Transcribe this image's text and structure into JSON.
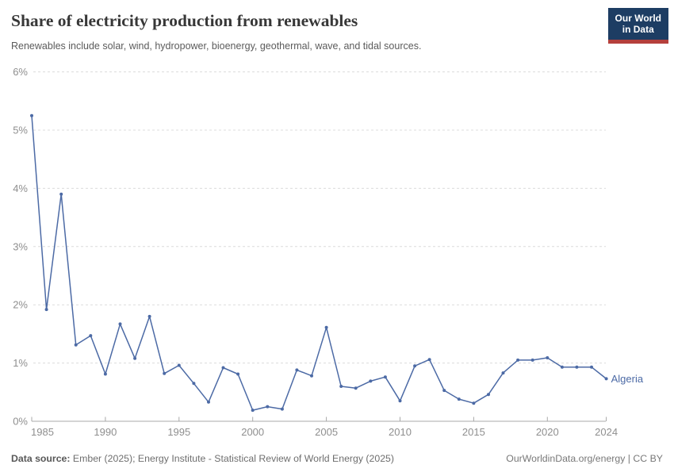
{
  "header": {
    "title": "Share of electricity production from renewables",
    "subtitle": "Renewables include solar, wind, hydropower, bioenergy, geothermal, wave, and tidal sources.",
    "logo_line1": "Our World",
    "logo_line2": "in Data"
  },
  "chart_data": {
    "type": "line",
    "title": "Share of electricity production from renewables",
    "x": [
      1985,
      1986,
      1987,
      1988,
      1989,
      1990,
      1991,
      1992,
      1993,
      1994,
      1995,
      1996,
      1997,
      1998,
      1999,
      2000,
      2001,
      2002,
      2003,
      2004,
      2005,
      2006,
      2007,
      2008,
      2009,
      2010,
      2011,
      2012,
      2013,
      2014,
      2015,
      2016,
      2017,
      2018,
      2019,
      2020,
      2021,
      2022,
      2023,
      2024
    ],
    "series": [
      {
        "name": "Algeria",
        "color": "#4c6aa5",
        "values": [
          5.25,
          1.92,
          3.9,
          1.31,
          1.47,
          0.81,
          1.67,
          1.08,
          1.8,
          0.82,
          0.96,
          0.65,
          0.33,
          0.92,
          0.81,
          0.19,
          0.25,
          0.21,
          0.88,
          0.78,
          1.61,
          0.6,
          0.57,
          0.69,
          0.76,
          0.35,
          0.95,
          1.06,
          0.53,
          0.38,
          0.31,
          0.46,
          0.83,
          1.05,
          1.05,
          1.09,
          0.93,
          0.93,
          0.93,
          0.73
        ]
      }
    ],
    "xlim": [
      1985,
      2024
    ],
    "ylim": [
      0,
      6
    ],
    "x_ticks": [
      1985,
      1990,
      1995,
      2000,
      2005,
      2010,
      2015,
      2020,
      2024
    ],
    "y_ticks": [
      0,
      1,
      2,
      3,
      4,
      5,
      6
    ],
    "y_tick_suffix": "%",
    "grid": "horizontal-dashed",
    "legend_position": "end-of-line-label",
    "xlabel": "",
    "ylabel": ""
  },
  "footer": {
    "datasource_label": "Data source:",
    "datasource_text": "Ember (2025); Energy Institute - Statistical Review of World Energy (2025)",
    "rights": "OurWorldinData.org/energy | CC BY"
  },
  "colors": {
    "line": "#4c6aa5",
    "grid": "#dcdcdc",
    "axis": "#a8a8a8",
    "tick_label": "#8f8f8f",
    "logo_navy": "#1d3d63",
    "logo_red": "#b5403c"
  }
}
